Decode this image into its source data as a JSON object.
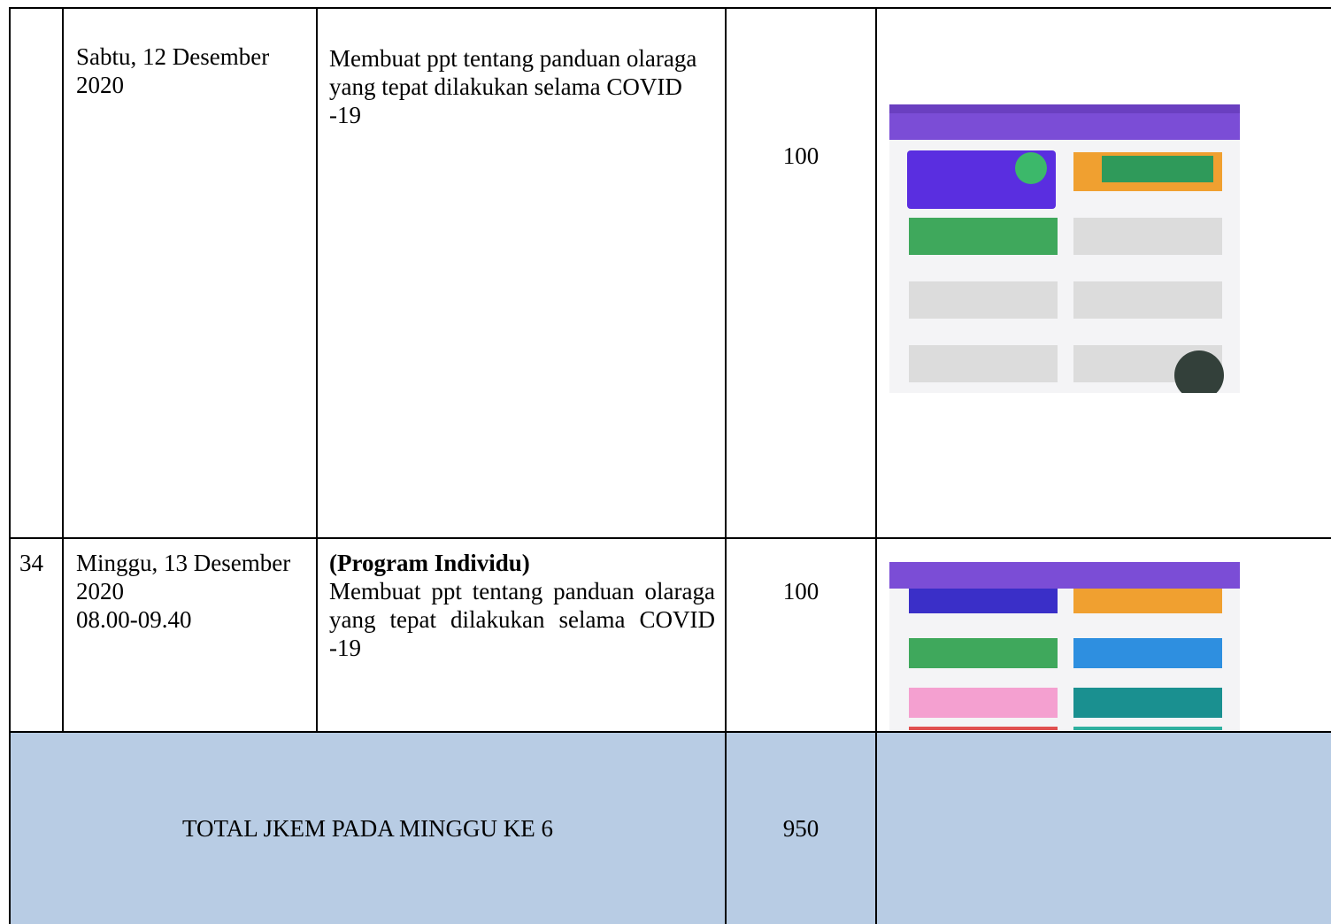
{
  "table": {
    "rows": [
      {
        "no": null,
        "date": [
          "Sabtu, 12 Desember",
          "2020"
        ],
        "activity_title": null,
        "activity": "Membuat ppt tentang panduan olaraga yang tepat dilakukan selama COVID -19",
        "jkem": "100"
      },
      {
        "no": "34",
        "date": [
          "Minggu, 13 Desember",
          "2020",
          "08.00-09.40"
        ],
        "activity_title": "(Program Individu)",
        "activity": "Membuat ppt tentang panduan olaraga yang tepat dilakukan selama COVID -19",
        "jkem": "100"
      }
    ],
    "total": {
      "label": "TOTAL JKEM PADA MINGGU KE 6",
      "value": "950"
    }
  }
}
